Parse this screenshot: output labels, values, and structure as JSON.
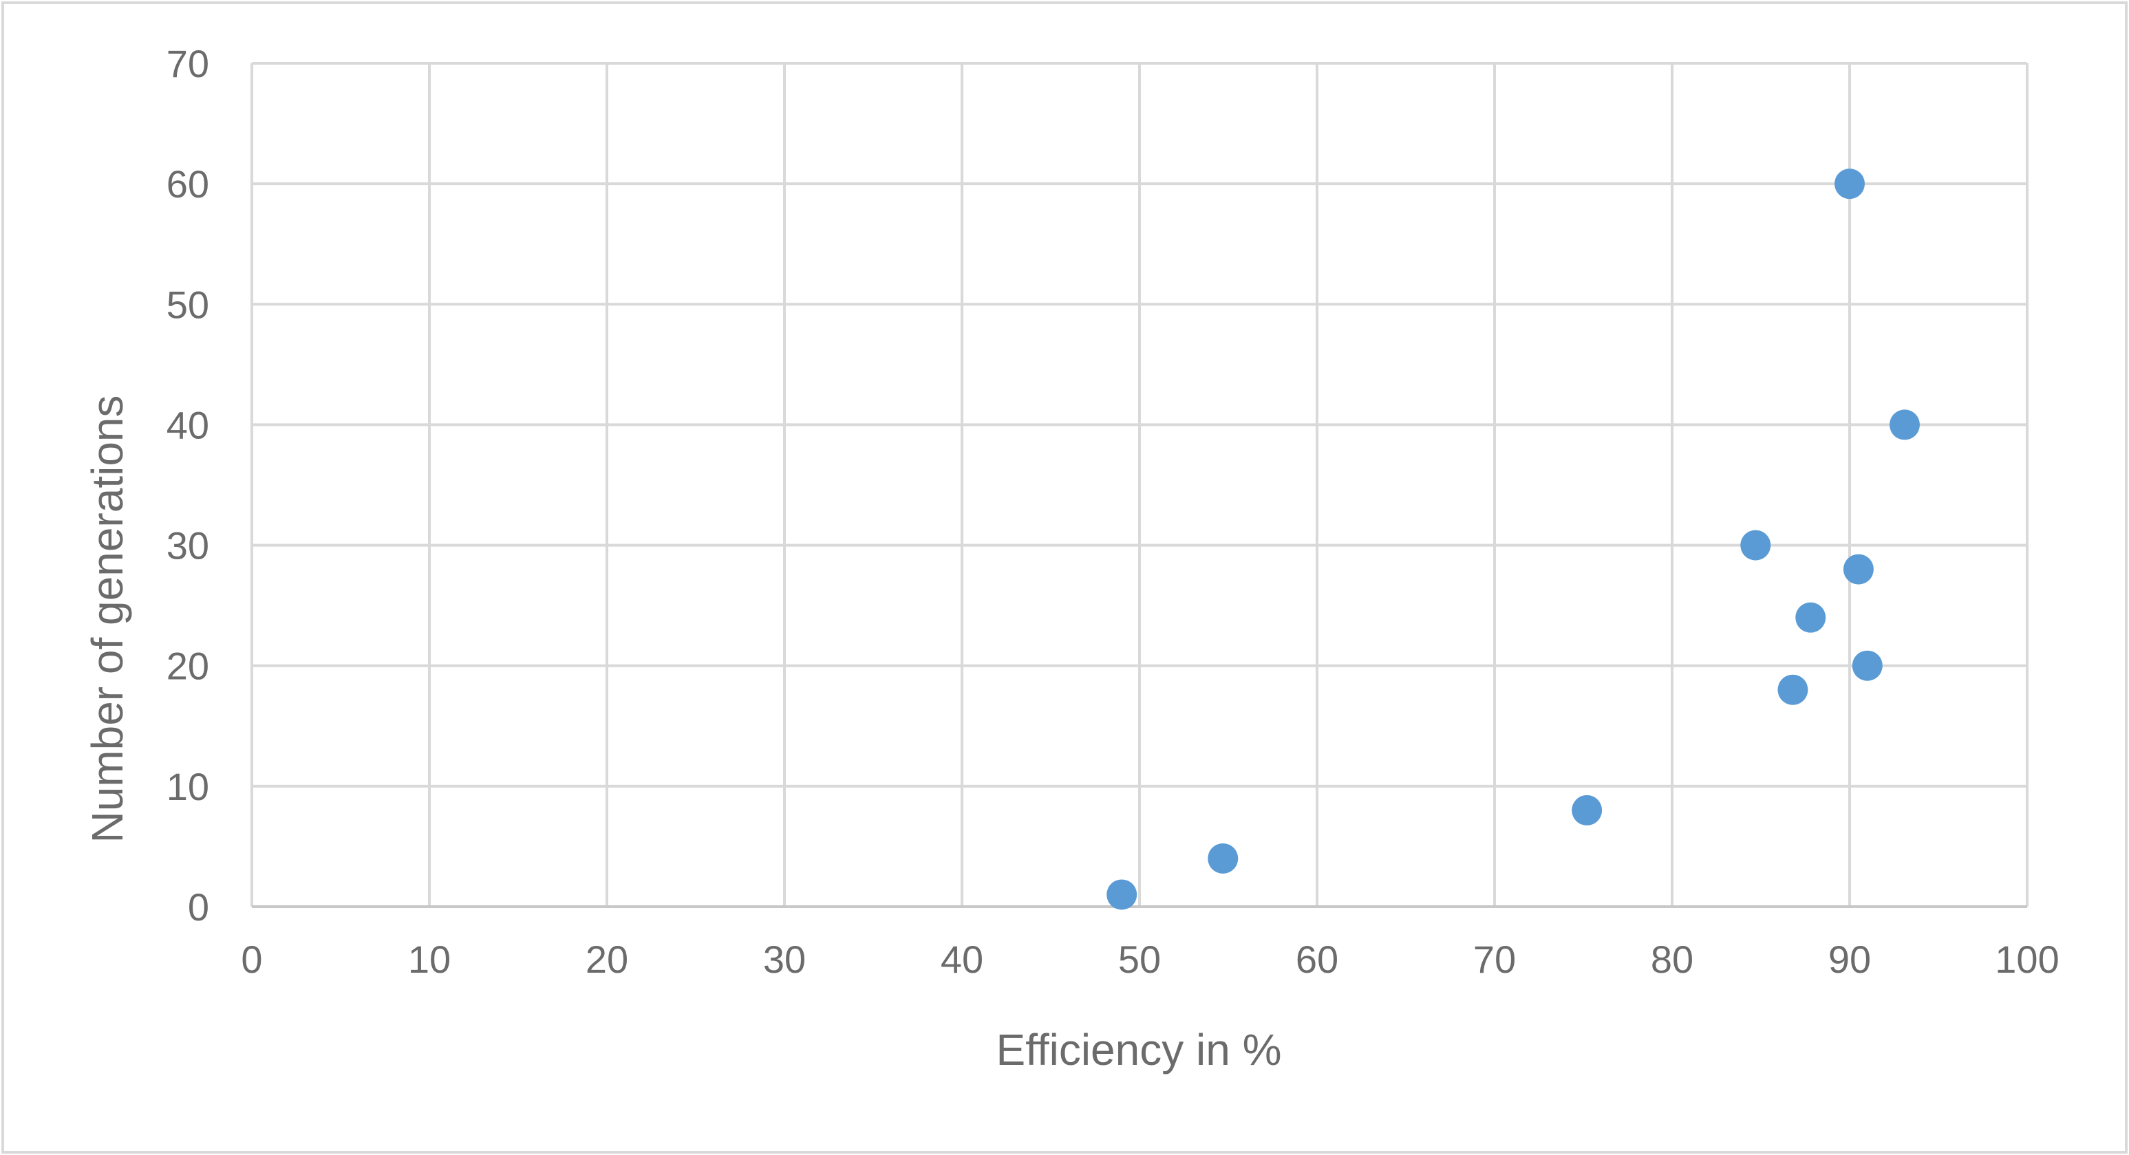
{
  "chart_data": {
    "type": "scatter",
    "title": "",
    "xlabel": "Efficiency in %",
    "ylabel": "Number of generations",
    "xlim": [
      0,
      100
    ],
    "ylim": [
      0,
      70
    ],
    "xticks": [
      "0",
      "10",
      "20",
      "30",
      "40",
      "50",
      "60",
      "70",
      "80",
      "90",
      "100"
    ],
    "yticks": [
      "0",
      "10",
      "20",
      "30",
      "40",
      "50",
      "60",
      "70"
    ],
    "grid": true,
    "legend": "none",
    "marker_color": "#5b9bd5",
    "grid_color": "#d9d9d9",
    "text_color": "#6b6b6b",
    "border_color": "#d9d9d9",
    "series": [
      {
        "x": [
          49,
          54.7,
          75.2,
          86.8,
          84.7,
          87.8,
          90.5,
          91,
          93.1,
          90
        ],
        "y": [
          1,
          4,
          8,
          18,
          30,
          24,
          28,
          20,
          40,
          60
        ]
      }
    ]
  }
}
